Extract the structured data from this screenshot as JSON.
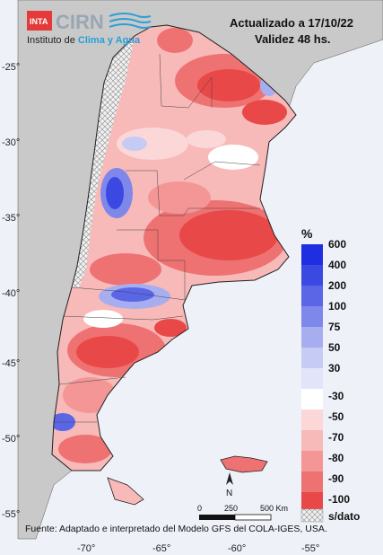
{
  "header": {
    "updated": "Actualizado a 17/10/22",
    "validity": "Validez 48 hs."
  },
  "logo": {
    "inta": "INTA",
    "cirn": "CIRN",
    "institute_prefix": "Instituto de ",
    "institute_highlight": "Clima y Agua"
  },
  "axes": {
    "lat": [
      "-25°",
      "-30°",
      "-35°",
      "-40°",
      "-45°",
      "-50°",
      "-55°"
    ],
    "lon": [
      "-70°",
      "-65°",
      "-60°",
      "-55°"
    ]
  },
  "legend": {
    "unit": "%",
    "classes": [
      {
        "label": "600",
        "color": "#1f2ee0"
      },
      {
        "label": "400",
        "color": "#3b48e2"
      },
      {
        "label": "200",
        "color": "#5a66e6"
      },
      {
        "label": "100",
        "color": "#7e88ea"
      },
      {
        "label": "75",
        "color": "#a7aef0"
      },
      {
        "label": "50",
        "color": "#c6cbf5"
      },
      {
        "label": "30",
        "color": "#e2e5fa"
      },
      {
        "label": "-30",
        "color": "#ffffff"
      },
      {
        "label": "-50",
        "color": "#fbd7d7"
      },
      {
        "label": "-70",
        "color": "#f8b9b9"
      },
      {
        "label": "-80",
        "color": "#f49696"
      },
      {
        "label": "-90",
        "color": "#ef7272"
      },
      {
        "label": "-100",
        "color": "#e94848"
      }
    ],
    "nodata_label": "s/dato"
  },
  "scale": {
    "ticks": [
      "0",
      "250",
      "500 Km"
    ]
  },
  "north_arrow": "N",
  "source": "Fuente: Adaptado e interpretado del Modelo GFS del COLA-IGES, USA.",
  "colors": {
    "ocean": "#eef1f8",
    "neighbor_land": "#c9c9c9",
    "deficit_strong": "#e94848",
    "deficit_mid": "#f49696",
    "excess_strong": "#1f2ee0",
    "accent": "#2a9fd6"
  }
}
